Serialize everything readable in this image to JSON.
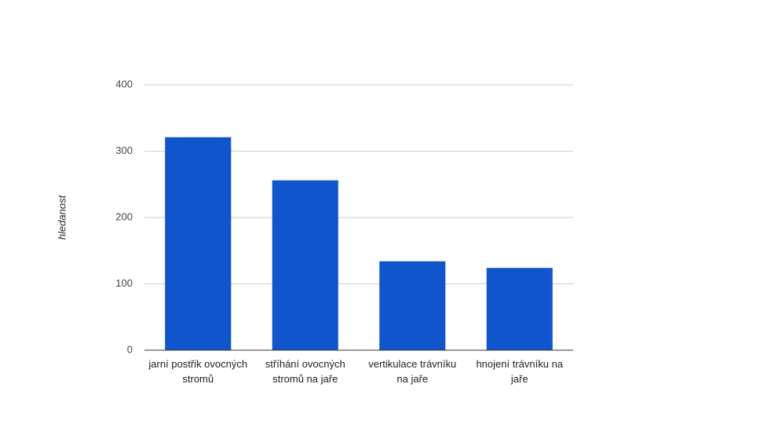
{
  "chart_data": {
    "type": "bar",
    "y_label": "hledanost",
    "categories": [
      "jarní postřik ovocných stromů",
      "stříhání ovocných stromů na jaře",
      "vertikulace trávníku na jaře",
      "hnojení trávníku na jaře"
    ],
    "values": [
      321,
      256,
      134,
      124
    ],
    "color": "#1155cc",
    "ylim": [
      0,
      400
    ],
    "yticks": [
      0,
      100,
      200,
      300,
      400
    ],
    "grid": true
  }
}
